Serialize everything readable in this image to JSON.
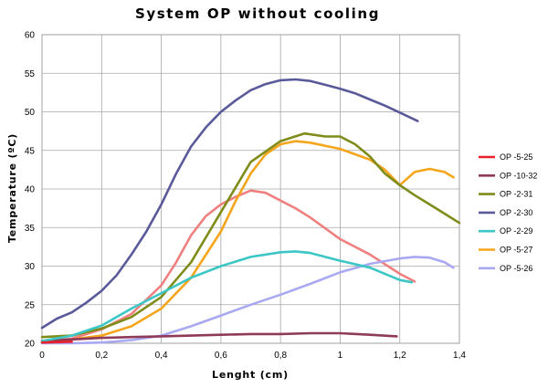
{
  "chart_data": {
    "type": "line",
    "title": "System OP without cooling",
    "xlabel": "Lenght (cm)",
    "ylabel": "Temperature (ºC)",
    "xlim": [
      0,
      1.4
    ],
    "ylim": [
      20,
      60
    ],
    "x_ticks": [
      0,
      0.2,
      0.4,
      0.6,
      0.8,
      1,
      1.2,
      1.4
    ],
    "x_tick_labels": [
      "0",
      "0,2",
      "0,4",
      "0,6",
      "0,8",
      "1",
      "1,2",
      "1,4"
    ],
    "y_ticks": [
      20,
      25,
      30,
      35,
      40,
      45,
      50,
      55,
      60
    ],
    "y_tick_labels": [
      "20",
      "25",
      "30",
      "35",
      "40",
      "45",
      "50",
      "55",
      "60"
    ],
    "grid": true,
    "legend_position": "right",
    "series": [
      {
        "name": "OP -5-25",
        "color": "#e8212b",
        "x": [
          0,
          0.1
        ],
        "y": [
          20.1,
          20.2
        ]
      },
      {
        "name": "OP -10-32",
        "color": "#8e3a59",
        "x": [
          0,
          0.1,
          0.2,
          0.3,
          0.4,
          0.5,
          0.6,
          0.7,
          0.8,
          0.9,
          1.0,
          1.1,
          1.19
        ],
        "y": [
          20.3,
          20.5,
          20.7,
          20.8,
          20.9,
          21.0,
          21.1,
          21.2,
          21.2,
          21.3,
          21.3,
          21.1,
          20.9
        ]
      },
      {
        "name": "OP -2-31",
        "color": "#7f8c1a",
        "x": [
          0,
          0.1,
          0.2,
          0.3,
          0.4,
          0.5,
          0.6,
          0.7,
          0.8,
          0.88,
          0.95,
          1.0,
          1.05,
          1.1,
          1.15,
          1.2,
          1.25,
          1.3,
          1.35,
          1.4
        ],
        "y": [
          20.8,
          21.0,
          21.9,
          23.4,
          26.0,
          30.5,
          37.0,
          43.5,
          46.2,
          47.2,
          46.8,
          46.8,
          45.8,
          44.2,
          42.0,
          40.5,
          39.2,
          38.0,
          36.8,
          35.6
        ]
      },
      {
        "name": "OP -2-30",
        "color": "#5a5a9a",
        "x": [
          0,
          0.05,
          0.1,
          0.15,
          0.2,
          0.25,
          0.3,
          0.35,
          0.4,
          0.45,
          0.5,
          0.55,
          0.6,
          0.65,
          0.7,
          0.75,
          0.8,
          0.85,
          0.9,
          0.95,
          1.0,
          1.05,
          1.1,
          1.15,
          1.2,
          1.26
        ],
        "y": [
          22.0,
          23.2,
          24.0,
          25.3,
          26.8,
          28.8,
          31.5,
          34.5,
          38.0,
          42.0,
          45.5,
          48.0,
          50.0,
          51.5,
          52.8,
          53.6,
          54.1,
          54.2,
          54.0,
          53.5,
          53.0,
          52.4,
          51.6,
          50.8,
          49.9,
          48.8
        ]
      },
      {
        "name": "OP -2-29",
        "color": "#3cc6c6",
        "x": [
          0,
          0.1,
          0.2,
          0.3,
          0.4,
          0.5,
          0.6,
          0.7,
          0.8,
          0.85,
          0.9,
          1.0,
          1.1,
          1.2,
          1.24
        ],
        "y": [
          20.3,
          21.0,
          22.3,
          24.5,
          26.5,
          28.5,
          30.0,
          31.2,
          31.8,
          31.9,
          31.7,
          30.7,
          29.8,
          28.2,
          27.9
        ]
      },
      {
        "name": "OP -5-27",
        "color": "#f5a51c",
        "x": [
          0,
          0.1,
          0.2,
          0.3,
          0.4,
          0.5,
          0.6,
          0.65,
          0.7,
          0.75,
          0.8,
          0.85,
          0.9,
          1.0,
          1.05,
          1.1,
          1.15,
          1.2,
          1.25,
          1.3,
          1.35,
          1.38
        ],
        "y": [
          20.3,
          20.5,
          21.0,
          22.2,
          24.5,
          28.5,
          34.5,
          38.5,
          42.0,
          44.5,
          45.8,
          46.2,
          46.0,
          45.2,
          44.5,
          43.8,
          42.5,
          40.5,
          42.2,
          42.6,
          42.2,
          41.5
        ]
      },
      {
        "name": "OP -5-26",
        "color": "#a9a9f2",
        "x": [
          0,
          0.1,
          0.2,
          0.3,
          0.4,
          0.5,
          0.6,
          0.7,
          0.8,
          0.9,
          1.0,
          1.1,
          1.2,
          1.25,
          1.3,
          1.35,
          1.38
        ],
        "y": [
          20.0,
          20.0,
          20.1,
          20.4,
          21.0,
          22.2,
          23.6,
          25.0,
          26.3,
          27.7,
          29.2,
          30.3,
          31.0,
          31.2,
          31.1,
          30.5,
          29.8
        ]
      },
      {
        "name": "",
        "color": "#f08080",
        "x": [
          0,
          0.1,
          0.2,
          0.3,
          0.4,
          0.45,
          0.5,
          0.55,
          0.6,
          0.65,
          0.7,
          0.75,
          0.8,
          0.85,
          0.9,
          1.0,
          1.1,
          1.2,
          1.25
        ],
        "y": [
          20.3,
          20.6,
          21.8,
          23.8,
          27.5,
          30.5,
          34.0,
          36.5,
          38.0,
          39.0,
          39.8,
          39.5,
          38.5,
          37.5,
          36.3,
          33.5,
          31.5,
          29.0,
          28.0
        ]
      }
    ]
  }
}
